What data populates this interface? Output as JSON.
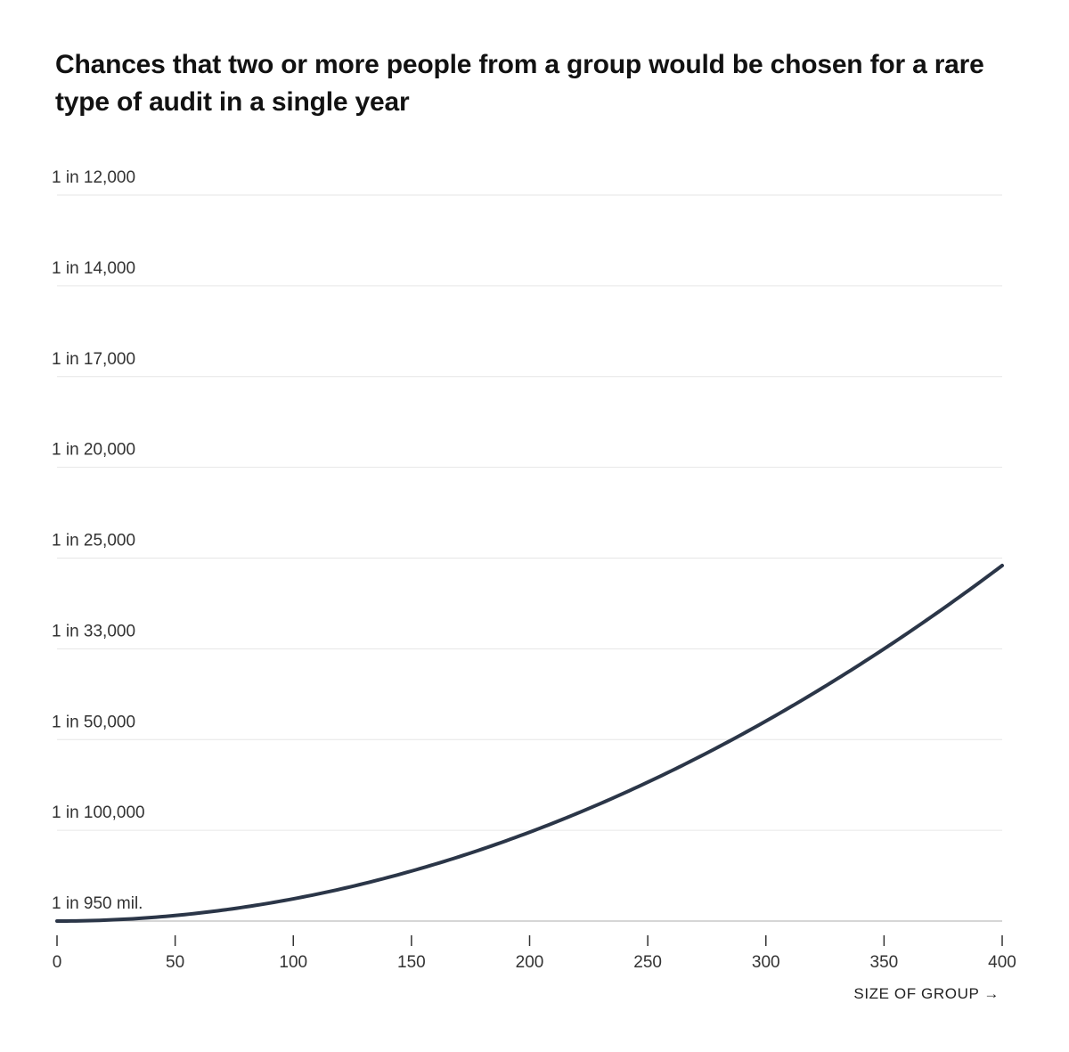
{
  "chart_data": {
    "type": "line",
    "title": "Chances that two or more people from a group would be chosen for a rare type of audit in a single year",
    "xlabel": "SIZE OF GROUP →",
    "ylabel": "",
    "x_ticks": [
      0,
      50,
      100,
      150,
      200,
      250,
      300,
      350,
      400
    ],
    "xlim": [
      0,
      400
    ],
    "y_ticks": [
      {
        "label": "1 in 950 mil.",
        "denominator": 950000000
      },
      {
        "label": "1 in 100,000",
        "denominator": 100000
      },
      {
        "label": "1 in 50,000",
        "denominator": 50000
      },
      {
        "label": "1 in 33,000",
        "denominator": 33000
      },
      {
        "label": "1 in 25,000",
        "denominator": 25000
      },
      {
        "label": "1 in 20,000",
        "denominator": 20000
      },
      {
        "label": "1 in 17,000",
        "denominator": 17000
      },
      {
        "label": "1 in 14,000",
        "denominator": 14000
      },
      {
        "label": "1 in 12,000",
        "denominator": 12000
      }
    ],
    "y_scale": "linear in probability (ticks shown as 1 in N)",
    "grid": true,
    "series": [
      {
        "color": "#2b3648",
        "points": [
          {
            "x": 1,
            "denominator": 950000000
          },
          {
            "x": 50,
            "denominator": 1600000
          },
          {
            "x": 100,
            "denominator": 400000
          },
          {
            "x": 150,
            "denominator": 178000
          },
          {
            "x": 200,
            "denominator": 100000
          },
          {
            "x": 250,
            "denominator": 64000
          },
          {
            "x": 300,
            "denominator": 44500
          },
          {
            "x": 350,
            "denominator": 32700
          },
          {
            "x": 400,
            "denominator": 25000
          }
        ]
      }
    ]
  }
}
